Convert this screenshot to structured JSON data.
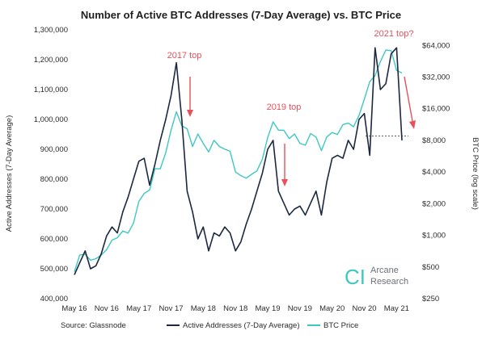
{
  "chart_data": {
    "type": "line",
    "title": "Number of Active BTC Addresses (7-Day Average) vs. BTC Price",
    "ylabel_left": "Active Addresses (7-Day Average)",
    "ylabel_right": "BTC Price (log scale)",
    "y_left_lim": [
      400000,
      1300000
    ],
    "y_left_ticks": [
      "400,000",
      "500,000",
      "600,000",
      "700,000",
      "800,000",
      "900,000",
      "1,000,000",
      "1,100,000",
      "1,200,000",
      "1,300,000"
    ],
    "y_right_scale": "log",
    "y_right_lim": [
      250,
      90000
    ],
    "y_right_ticks": [
      "$250",
      "$500",
      "$1,000",
      "$2,000",
      "$4,000",
      "$8,000",
      "$16,000",
      "$32,000",
      "$64,000"
    ],
    "y_right_tick_values": [
      250,
      500,
      1000,
      2000,
      4000,
      8000,
      16000,
      32000,
      64000
    ],
    "x_ticks": [
      "May 16",
      "Nov 16",
      "May 17",
      "Nov 17",
      "May 18",
      "Nov 18",
      "May 19",
      "Nov 19",
      "May 20",
      "Nov 20",
      "May 21"
    ],
    "x_tick_dates": [
      "2016-05",
      "2016-11",
      "2017-05",
      "2017-11",
      "2018-05",
      "2018-11",
      "2019-05",
      "2019-11",
      "2020-05",
      "2020-11",
      "2021-05"
    ],
    "grid": false,
    "legend_position": "bottom",
    "series": [
      {
        "name": "Active Addresses (7-Day Average)",
        "color": "#1c2841",
        "axis": "left",
        "points": [
          [
            "2016-05",
            480000
          ],
          [
            "2016-06",
            520000
          ],
          [
            "2016-07",
            560000
          ],
          [
            "2016-08",
            500000
          ],
          [
            "2016-09",
            510000
          ],
          [
            "2016-10",
            550000
          ],
          [
            "2016-11",
            610000
          ],
          [
            "2016-12",
            640000
          ],
          [
            "2017-01",
            620000
          ],
          [
            "2017-02",
            690000
          ],
          [
            "2017-03",
            740000
          ],
          [
            "2017-04",
            800000
          ],
          [
            "2017-05",
            860000
          ],
          [
            "2017-06",
            870000
          ],
          [
            "2017-07",
            780000
          ],
          [
            "2017-08",
            850000
          ],
          [
            "2017-09",
            930000
          ],
          [
            "2017-10",
            1000000
          ],
          [
            "2017-11",
            1080000
          ],
          [
            "2017-12",
            1190000
          ],
          [
            "2018-01",
            1000000
          ],
          [
            "2018-02",
            760000
          ],
          [
            "2018-03",
            690000
          ],
          [
            "2018-04",
            600000
          ],
          [
            "2018-05",
            640000
          ],
          [
            "2018-06",
            560000
          ],
          [
            "2018-07",
            620000
          ],
          [
            "2018-08",
            610000
          ],
          [
            "2018-09",
            640000
          ],
          [
            "2018-10",
            620000
          ],
          [
            "2018-11",
            560000
          ],
          [
            "2018-12",
            590000
          ],
          [
            "2019-01",
            650000
          ],
          [
            "2019-02",
            700000
          ],
          [
            "2019-03",
            760000
          ],
          [
            "2019-04",
            820000
          ],
          [
            "2019-05",
            900000
          ],
          [
            "2019-06",
            930000
          ],
          [
            "2019-07",
            760000
          ],
          [
            "2019-08",
            720000
          ],
          [
            "2019-09",
            680000
          ],
          [
            "2019-10",
            700000
          ],
          [
            "2019-11",
            710000
          ],
          [
            "2019-12",
            680000
          ],
          [
            "2020-01",
            720000
          ],
          [
            "2020-02",
            760000
          ],
          [
            "2020-03",
            680000
          ],
          [
            "2020-04",
            790000
          ],
          [
            "2020-05",
            870000
          ],
          [
            "2020-06",
            880000
          ],
          [
            "2020-07",
            870000
          ],
          [
            "2020-08",
            930000
          ],
          [
            "2020-09",
            900000
          ],
          [
            "2020-10",
            1000000
          ],
          [
            "2020-11",
            1020000
          ],
          [
            "2020-12",
            880000
          ],
          [
            "2021-01",
            1240000
          ],
          [
            "2021-02",
            1100000
          ],
          [
            "2021-03",
            1120000
          ],
          [
            "2021-04",
            1220000
          ],
          [
            "2021-05",
            1240000
          ],
          [
            "2021-06",
            930000
          ]
        ]
      },
      {
        "name": "BTC Price",
        "color": "#3ec9c0",
        "axis": "right",
        "points": [
          [
            "2016-05",
            450
          ],
          [
            "2016-06",
            650
          ],
          [
            "2016-07",
            660
          ],
          [
            "2016-08",
            580
          ],
          [
            "2016-09",
            600
          ],
          [
            "2016-10",
            650
          ],
          [
            "2016-11",
            730
          ],
          [
            "2016-12",
            900
          ],
          [
            "2017-01",
            950
          ],
          [
            "2017-02",
            1100
          ],
          [
            "2017-03",
            1050
          ],
          [
            "2017-04",
            1300
          ],
          [
            "2017-05",
            2100
          ],
          [
            "2017-06",
            2500
          ],
          [
            "2017-07",
            2700
          ],
          [
            "2017-08",
            4300
          ],
          [
            "2017-09",
            4300
          ],
          [
            "2017-10",
            6100
          ],
          [
            "2017-11",
            10000
          ],
          [
            "2017-12",
            15000
          ],
          [
            "2018-01",
            11000
          ],
          [
            "2018-02",
            10300
          ],
          [
            "2018-03",
            7000
          ],
          [
            "2018-04",
            9200
          ],
          [
            "2018-05",
            7500
          ],
          [
            "2018-06",
            6200
          ],
          [
            "2018-07",
            8000
          ],
          [
            "2018-08",
            7000
          ],
          [
            "2018-09",
            6600
          ],
          [
            "2018-10",
            6300
          ],
          [
            "2018-11",
            4000
          ],
          [
            "2018-12",
            3700
          ],
          [
            "2019-01",
            3500
          ],
          [
            "2019-02",
            3800
          ],
          [
            "2019-03",
            4100
          ],
          [
            "2019-04",
            5300
          ],
          [
            "2019-05",
            8500
          ],
          [
            "2019-06",
            12000
          ],
          [
            "2019-07",
            10000
          ],
          [
            "2019-08",
            10000
          ],
          [
            "2019-09",
            8300
          ],
          [
            "2019-10",
            9200
          ],
          [
            "2019-11",
            7500
          ],
          [
            "2019-12",
            7200
          ],
          [
            "2020-01",
            9300
          ],
          [
            "2020-02",
            8600
          ],
          [
            "2020-03",
            6400
          ],
          [
            "2020-04",
            8600
          ],
          [
            "2020-05",
            9500
          ],
          [
            "2020-06",
            9100
          ],
          [
            "2020-07",
            11300
          ],
          [
            "2020-08",
            11700
          ],
          [
            "2020-09",
            10800
          ],
          [
            "2020-10",
            13800
          ],
          [
            "2020-11",
            19700
          ],
          [
            "2020-12",
            29000
          ],
          [
            "2021-01",
            33000
          ],
          [
            "2021-02",
            45000
          ],
          [
            "2021-03",
            58000
          ],
          [
            "2021-04",
            57000
          ],
          [
            "2021-05",
            37000
          ],
          [
            "2021-06",
            35000
          ]
        ]
      }
    ],
    "annotations": [
      {
        "text": "2017 top",
        "color": "#e8505b"
      },
      {
        "text": "2019 top",
        "color": "#e8505b"
      },
      {
        "text": "2021 top?",
        "color": "#e8505b"
      }
    ],
    "dashed_reference_line_value": 8800,
    "source": "Source: Glassnode"
  },
  "brand": {
    "name_line1": "Arcane",
    "name_line2": "Research",
    "accent_color": "#3ec9c0"
  }
}
